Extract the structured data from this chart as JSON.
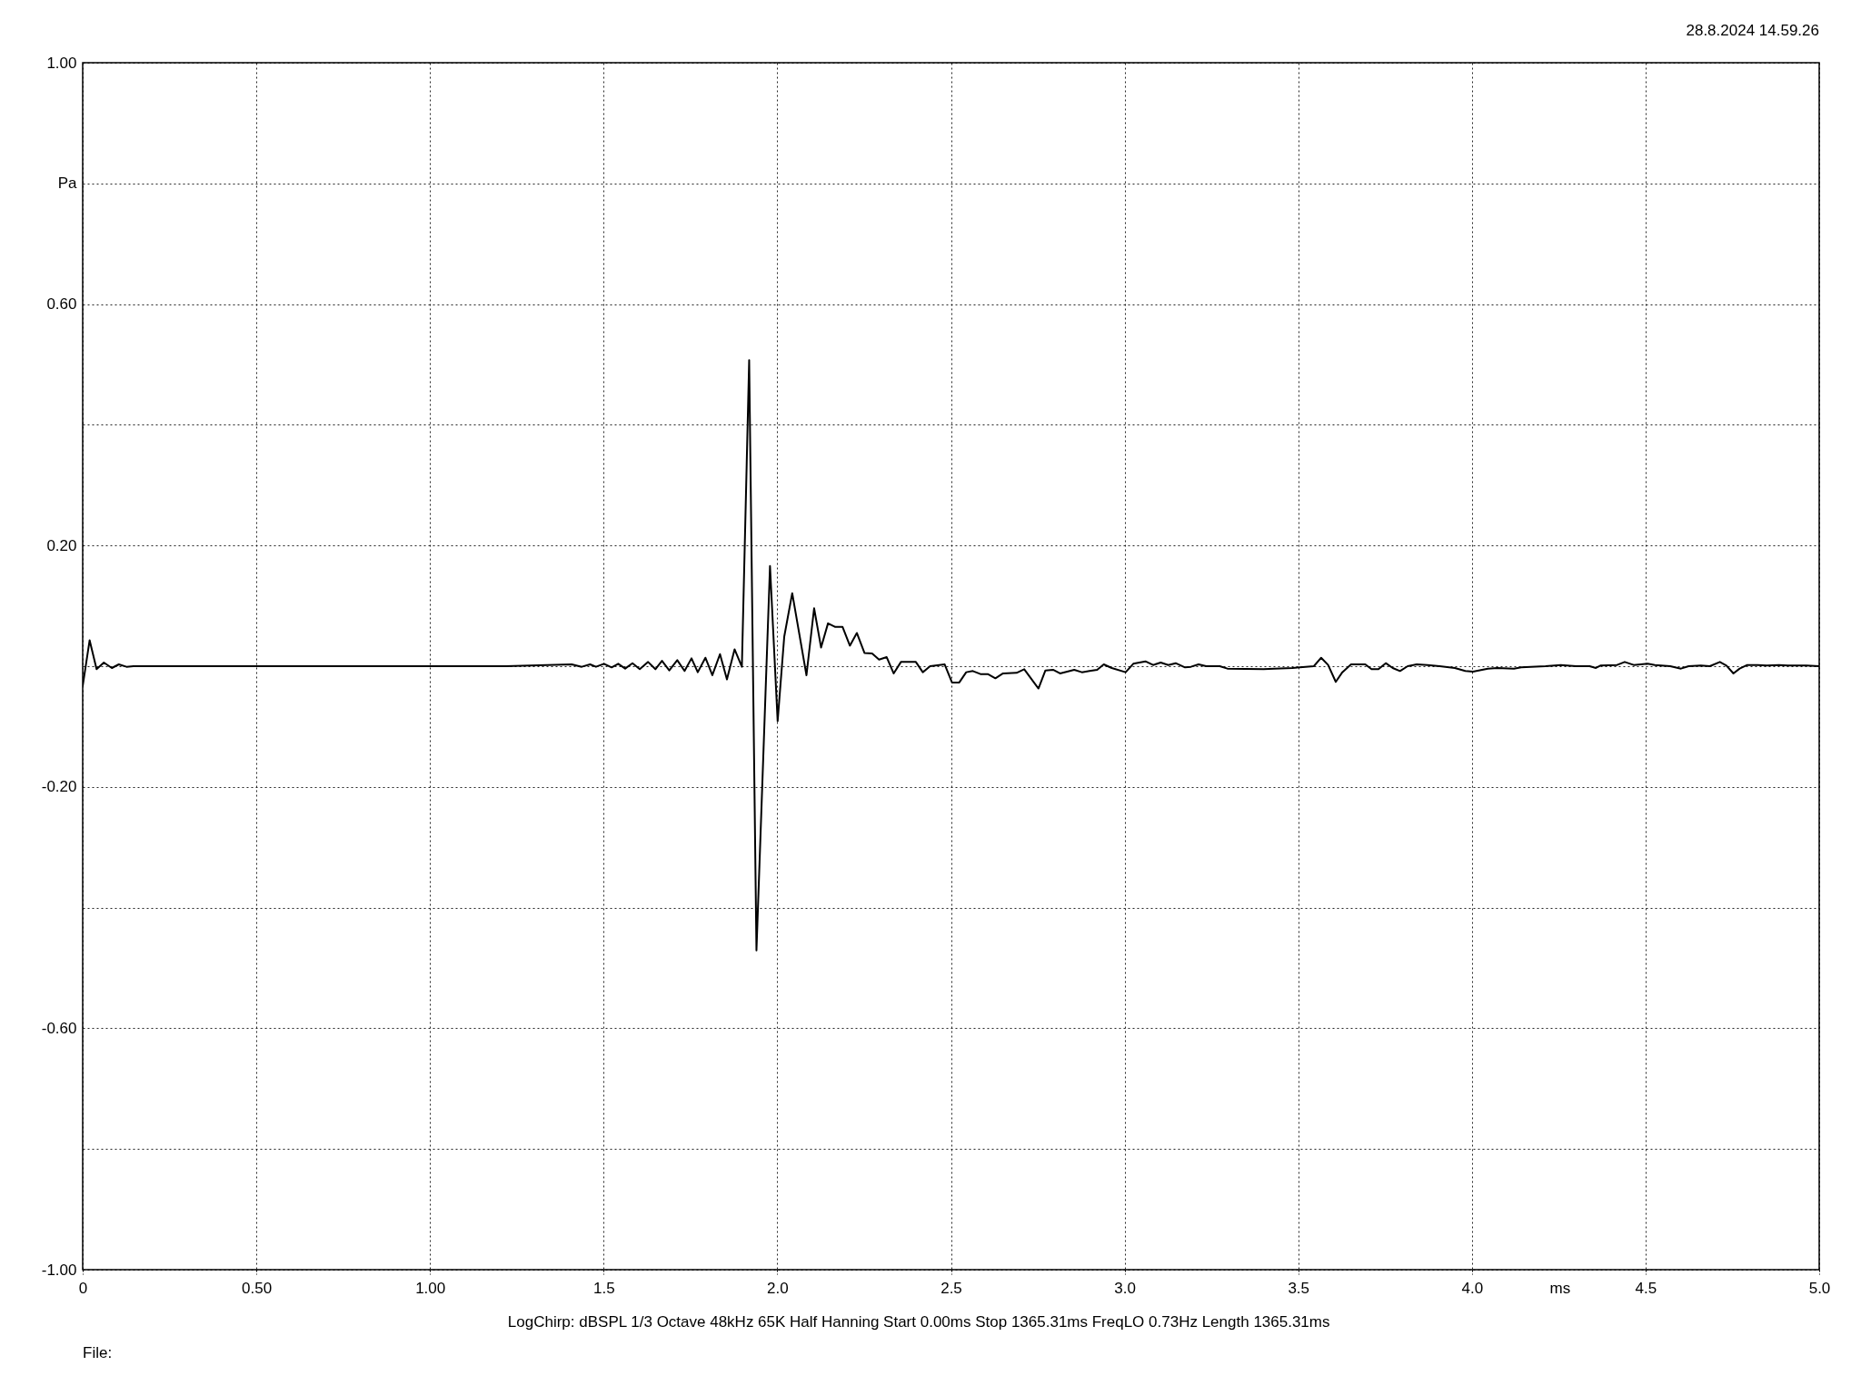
{
  "chart_data": {
    "type": "line",
    "xlabel": "ms",
    "ylabel": "Pa",
    "annotations": [
      "28.8.2024 14.59.26",
      "LogChirp: dBSPL 1/3 Octave 48kHz 65K Half Hanning Start 0.00ms Stop 1365.31ms FreqLO 0.73Hz Length 1365.31ms",
      "File:"
    ],
    "x": [
      0,
      0.02,
      0.04,
      0.061,
      0.084,
      0.104,
      0.126,
      0.146,
      0.303,
      1.219,
      1.408,
      1.437,
      1.461,
      1.478,
      1.501,
      1.523,
      1.542,
      1.562,
      1.583,
      1.604,
      1.628,
      1.649,
      1.668,
      1.689,
      1.712,
      1.733,
      1.753,
      1.771,
      1.793,
      1.813,
      1.835,
      1.855,
      1.877,
      1.898,
      1.919,
      1.94,
      1.979,
      2.001,
      2.02,
      2.043,
      2.084,
      2.106,
      2.126,
      2.146,
      2.167,
      2.188,
      2.209,
      2.229,
      2.251,
      2.273,
      2.293,
      2.315,
      2.335,
      2.356,
      2.399,
      2.419,
      2.44,
      2.482,
      2.503,
      2.524,
      2.544,
      2.563,
      2.585,
      2.606,
      2.628,
      2.65,
      2.689,
      2.711,
      2.752,
      2.772,
      2.794,
      2.814,
      2.855,
      2.877,
      2.899,
      2.921,
      2.94,
      2.963,
      3.003,
      3.025,
      3.06,
      3.082,
      3.104,
      3.126,
      3.147,
      3.174,
      3.191,
      3.213,
      3.235,
      3.274,
      3.296,
      3.4,
      3.431,
      3.483,
      3.505,
      3.545,
      3.566,
      3.586,
      3.608,
      3.627,
      3.652,
      3.693,
      3.711,
      3.731,
      3.752,
      3.772,
      3.793,
      3.815,
      3.841,
      3.872,
      3.907,
      3.951,
      3.981,
      4.003,
      4.046,
      4.073,
      4.121,
      4.142,
      4.212,
      4.256,
      4.3,
      4.339,
      4.357,
      4.37,
      4.418,
      4.44,
      4.466,
      4.506,
      4.527,
      4.571,
      4.602,
      4.624,
      4.659,
      4.685,
      4.714,
      4.733,
      4.753,
      4.771,
      4.793,
      4.823,
      4.849,
      4.884,
      4.91,
      4.963,
      5.0
    ],
    "series": [
      {
        "color": "#000000",
        "values": [
          -0.033,
          0.043,
          -0.005,
          0.006,
          -0.003,
          0.003,
          -0.001,
          0.0,
          0.0,
          0.0,
          0.003,
          -0.001,
          0.003,
          -0.001,
          0.004,
          -0.002,
          0.004,
          -0.004,
          0.005,
          -0.005,
          0.007,
          -0.005,
          0.009,
          -0.007,
          0.01,
          -0.008,
          0.013,
          -0.01,
          0.014,
          -0.015,
          0.02,
          -0.022,
          0.028,
          -0.001,
          0.507,
          -0.471,
          0.166,
          -0.091,
          0.049,
          0.121,
          -0.015,
          0.096,
          0.031,
          0.071,
          0.065,
          0.065,
          0.034,
          0.055,
          0.022,
          0.021,
          0.011,
          0.015,
          -0.012,
          0.007,
          0.007,
          -0.01,
          0.0,
          0.003,
          -0.027,
          -0.027,
          -0.01,
          -0.008,
          -0.013,
          -0.013,
          -0.02,
          -0.012,
          -0.011,
          -0.005,
          -0.037,
          -0.007,
          -0.006,
          -0.012,
          -0.006,
          -0.01,
          -0.008,
          -0.006,
          0.003,
          -0.003,
          -0.01,
          0.004,
          0.008,
          0.002,
          0.006,
          0.002,
          0.005,
          -0.002,
          -0.001,
          0.003,
          0.0,
          0.0,
          -0.004,
          -0.005,
          -0.004,
          -0.003,
          -0.002,
          0.0,
          0.014,
          0.002,
          -0.026,
          -0.01,
          0.003,
          0.003,
          -0.005,
          -0.005,
          0.005,
          -0.003,
          -0.008,
          0.0,
          0.003,
          0.002,
          0.0,
          -0.003,
          -0.008,
          -0.009,
          -0.004,
          -0.003,
          -0.004,
          -0.002,
          0.0,
          0.002,
          0.0,
          0.0,
          -0.003,
          0.001,
          0.002,
          0.007,
          0.002,
          0.004,
          0.002,
          0.0,
          -0.004,
          0.0,
          0.001,
          0.0,
          0.007,
          0.001,
          -0.012,
          -0.004,
          0.002,
          0.002,
          0.001,
          0.002,
          0.001,
          0.001,
          0.0
        ]
      }
    ],
    "xlim": [
      0,
      5
    ],
    "ylim": [
      -1,
      1
    ],
    "xticks": [
      0,
      {
        "value": 0.5,
        "label": "0.50"
      },
      {
        "value": 1,
        "label": "1.00"
      },
      1.5,
      {
        "value": 2,
        "label": "2.0"
      },
      2.5,
      {
        "value": 3,
        "label": "3.0"
      },
      3.5,
      {
        "value": 4,
        "label": "4.0"
      },
      4.5,
      {
        "value": 5,
        "label": "5.0"
      }
    ],
    "yticks": [
      {
        "value": -1,
        "label": "-1.00"
      },
      {
        "value": -0.8,
        "label": null
      },
      {
        "value": -0.6,
        "label": "-0.60"
      },
      {
        "value": -0.4,
        "label": null
      },
      {
        "value": -0.2,
        "label": "-0.20"
      },
      {
        "value": 0,
        "label": null
      },
      {
        "value": 0.2,
        "label": "0.20"
      },
      {
        "value": 0.4,
        "label": null
      },
      {
        "value": 0.6,
        "label": "0.60"
      },
      {
        "value": 0.8,
        "label": null
      },
      {
        "value": 1,
        "label": "1.00"
      }
    ],
    "grid": true
  }
}
